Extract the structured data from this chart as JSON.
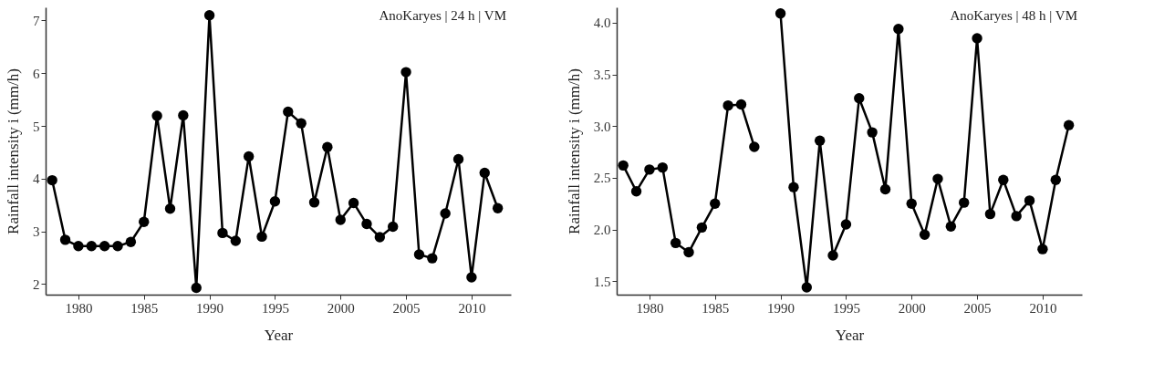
{
  "chart_data": [
    {
      "type": "line",
      "xlabel": "Year",
      "ylabel": "Rainfall intensity i (mm/h)",
      "annotations": [
        "AnoKaryes | 24 h | VM"
      ],
      "x": [
        1978,
        1979,
        1980,
        1981,
        1982,
        1983,
        1984,
        1985,
        1986,
        1987,
        1988,
        1989,
        1990,
        1991,
        1992,
        1993,
        1994,
        1995,
        1996,
        1997,
        1998,
        1999,
        2000,
        2001,
        2002,
        2003,
        2004,
        2005,
        2006,
        2007,
        2008,
        2009,
        2010,
        2011,
        2012
      ],
      "series": [
        {
          "color": "#000000",
          "values": [
            3.97,
            2.84,
            2.72,
            2.72,
            2.72,
            2.72,
            2.8,
            3.18,
            5.19,
            3.43,
            5.2,
            1.93,
            7.1,
            2.97,
            2.82,
            4.42,
            2.9,
            3.57,
            5.27,
            5.05,
            3.55,
            4.6,
            3.22,
            3.54,
            3.14,
            2.89,
            3.09,
            6.02,
            2.56,
            2.49,
            3.34,
            4.37,
            2.13,
            4.11,
            3.44
          ]
        }
      ],
      "xlim": [
        1977.5,
        2013
      ],
      "xticks": [
        1980,
        1985,
        1990,
        1995,
        2000,
        2005,
        2010
      ],
      "ylim": [
        1.8,
        7.25
      ],
      "yticks": [
        2,
        3,
        4,
        5,
        6,
        7
      ],
      "grid": false,
      "marker": "circle",
      "line_style": "solid"
    },
    {
      "type": "line",
      "xlabel": "Year",
      "ylabel": "Rainfall intensity i (mm/h)",
      "annotations": [
        "AnoKaryes | 48 h | VM"
      ],
      "x": [
        1978,
        1979,
        1980,
        1981,
        1982,
        1983,
        1984,
        1985,
        1986,
        1987,
        1988,
        1989,
        1990,
        1991,
        1992,
        1993,
        1994,
        1995,
        1996,
        1997,
        1998,
        1999,
        2000,
        2001,
        2002,
        2003,
        2004,
        2005,
        2006,
        2007,
        2008,
        2009,
        2010,
        2011,
        2012
      ],
      "series": [
        {
          "color": "#000000",
          "values": [
            2.62,
            2.37,
            2.58,
            2.6,
            1.87,
            1.78,
            2.02,
            2.25,
            3.2,
            3.21,
            2.8,
            null,
            4.09,
            2.41,
            1.44,
            2.86,
            1.75,
            2.05,
            3.27,
            2.94,
            2.39,
            3.94,
            2.25,
            1.95,
            2.49,
            2.03,
            2.26,
            3.85,
            2.15,
            2.48,
            2.13,
            2.28,
            1.81,
            2.48,
            3.01
          ]
        }
      ],
      "xlim": [
        1977.5,
        2013
      ],
      "xticks": [
        1980,
        1985,
        1990,
        1995,
        2000,
        2005,
        2010
      ],
      "ylim": [
        1.37,
        4.15
      ],
      "yticks": [
        {
          "value": 1.5,
          "label": "1.5"
        },
        {
          "value": 2,
          "label": "2.0"
        },
        {
          "value": 2.5,
          "label": "2.5"
        },
        {
          "value": 3,
          "label": "3.0"
        },
        {
          "value": 3.5,
          "label": "3.5"
        },
        {
          "value": 4,
          "label": "4.0"
        }
      ],
      "grid": false,
      "marker": "circle",
      "line_style": "solid"
    }
  ]
}
